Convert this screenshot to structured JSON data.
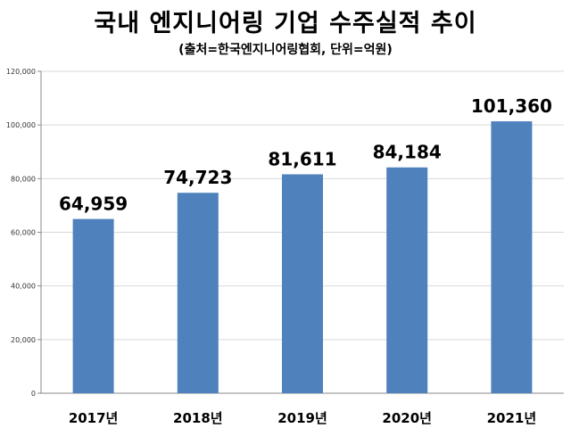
{
  "chart_data": {
    "type": "bar",
    "title": "국내 엔지니어링 기업 수주실적 추이",
    "subtitle": "(출처=한국엔지니어링협회, 단위=억원)",
    "categories": [
      "2017년",
      "2018년",
      "2019년",
      "2020년",
      "2021년"
    ],
    "values": [
      64959,
      74723,
      81611,
      84184,
      101360
    ],
    "data_labels": [
      "64,959",
      "74,723",
      "81,611",
      "84,184",
      "101,360"
    ],
    "ylim": [
      0,
      120000
    ],
    "yticks": [
      0,
      20000,
      40000,
      60000,
      80000,
      100000,
      120000
    ],
    "ytick_labels": [
      "0",
      "20,000",
      "40,000",
      "60,000",
      "80,000",
      "100,000",
      "120,000"
    ],
    "xlabel": "",
    "ylabel": "",
    "grid": "horizontal",
    "legend": "none",
    "bar_color": "#4f81bd",
    "grid_color": "#d9d9d9"
  }
}
